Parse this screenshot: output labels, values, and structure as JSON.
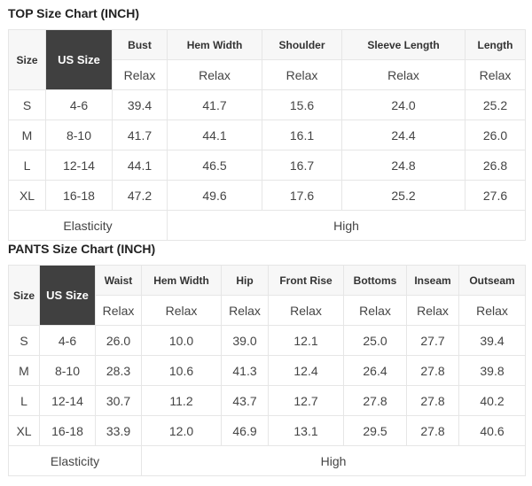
{
  "top": {
    "title": "TOP Size Chart (INCH)",
    "size_label": "Size",
    "us_size_label": "US Size",
    "columns": [
      "Bust",
      "Hem Width",
      "Shoulder",
      "Sleeve Length",
      "Length"
    ],
    "fit": [
      "Relax",
      "Relax",
      "Relax",
      "Relax",
      "Relax"
    ],
    "rows": [
      [
        "S",
        "4-6",
        "39.4",
        "41.7",
        "15.6",
        "24.0",
        "25.2"
      ],
      [
        "M",
        "8-10",
        "41.7",
        "44.1",
        "16.1",
        "24.4",
        "26.0"
      ],
      [
        "L",
        "12-14",
        "44.1",
        "46.5",
        "16.7",
        "24.8",
        "26.8"
      ],
      [
        "XL",
        "16-18",
        "47.2",
        "49.6",
        "17.6",
        "25.2",
        "27.6"
      ]
    ],
    "elasticity_label": "Elasticity",
    "elasticity_value": "High"
  },
  "pants": {
    "title": "PANTS Size Chart (INCH)",
    "size_label": "Size",
    "us_size_label": "US Size",
    "columns": [
      "Waist",
      "Hem Width",
      "Hip",
      "Front Rise",
      "Bottoms",
      "Inseam",
      "Outseam"
    ],
    "fit": [
      "Relax",
      "Relax",
      "Relax",
      "Relax",
      "Relax",
      "Relax",
      "Relax"
    ],
    "rows": [
      [
        "S",
        "4-6",
        "26.0",
        "10.0",
        "39.0",
        "12.1",
        "25.0",
        "27.7",
        "39.4"
      ],
      [
        "M",
        "8-10",
        "28.3",
        "10.6",
        "41.3",
        "12.4",
        "26.4",
        "27.8",
        "39.8"
      ],
      [
        "L",
        "12-14",
        "30.7",
        "11.2",
        "43.7",
        "12.7",
        "27.8",
        "27.8",
        "40.2"
      ],
      [
        "XL",
        "16-18",
        "33.9",
        "12.0",
        "46.9",
        "13.1",
        "29.5",
        "27.8",
        "40.6"
      ]
    ],
    "elasticity_label": "Elasticity",
    "elasticity_value": "High"
  }
}
